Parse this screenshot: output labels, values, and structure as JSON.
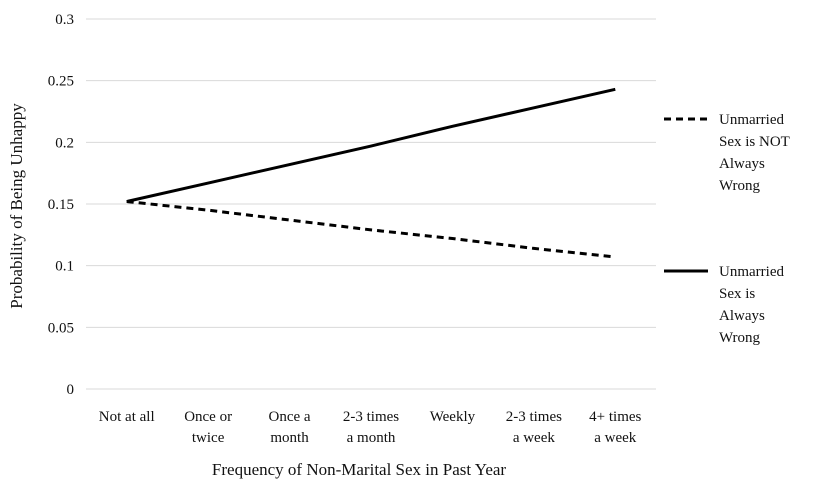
{
  "chart_data": {
    "type": "line",
    "title": "",
    "xlabel": "Frequency of Non-Marital Sex in Past Year",
    "ylabel": "Probability of Being Unhappy",
    "categories": [
      [
        "Not at all"
      ],
      [
        "Once or",
        "twice"
      ],
      [
        "Once a",
        "month"
      ],
      [
        "2-3 times",
        "a month"
      ],
      [
        "Weekly"
      ],
      [
        "2-3 times",
        "a week"
      ],
      [
        "4+ times",
        "a week"
      ]
    ],
    "ylim": [
      0,
      0.3
    ],
    "yticks": [
      "0",
      "0.05",
      "0.1",
      "0.15",
      "0.2",
      "0.25",
      "0.3"
    ],
    "grid": "horizontal",
    "legend_position": "right",
    "series": [
      {
        "name": [
          "Unmarried",
          "Sex is NOT",
          "Always",
          "Wrong"
        ],
        "style": "dashed",
        "color": "#000000",
        "values": [
          0.152,
          0.145,
          0.137,
          0.129,
          0.122,
          0.114,
          0.107
        ]
      },
      {
        "name": [
          "Unmarried",
          "Sex is",
          "Always",
          "Wrong"
        ],
        "style": "solid",
        "color": "#000000",
        "values": [
          0.152,
          0.167,
          0.182,
          0.197,
          0.213,
          0.228,
          0.243
        ]
      }
    ],
    "colors": {
      "grid": "#d9d9d9",
      "line": "#000000"
    }
  }
}
